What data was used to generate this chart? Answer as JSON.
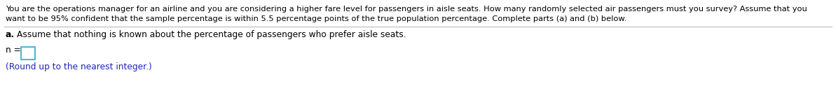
{
  "bg_color": "#ffffff",
  "line1": "You are the operations manager for an airline and you are considering a higher fare level for passengers in aisle seats. How many randomly selected air passengers must you survey? Assume that you",
  "line2": "want to be 95% confident that the sample percentage is within 5.5 percentage points of the true population percentage. Complete parts (a) and (b) below.",
  "part_a_label": "a.",
  "part_a_text": "Assume that nothing is known about the percentage of passengers who prefer aisle seats.",
  "n_label": "n =",
  "round_note": "(Round up to the nearest integer.)",
  "text_color": "#000000",
  "blue_color": "#2222BB",
  "font_size_main": 8.2,
  "font_size_part": 8.8,
  "font_size_n": 8.8,
  "font_size_note": 8.8,
  "divider_color": "#bbbbbb",
  "box_color": "#44AACC"
}
